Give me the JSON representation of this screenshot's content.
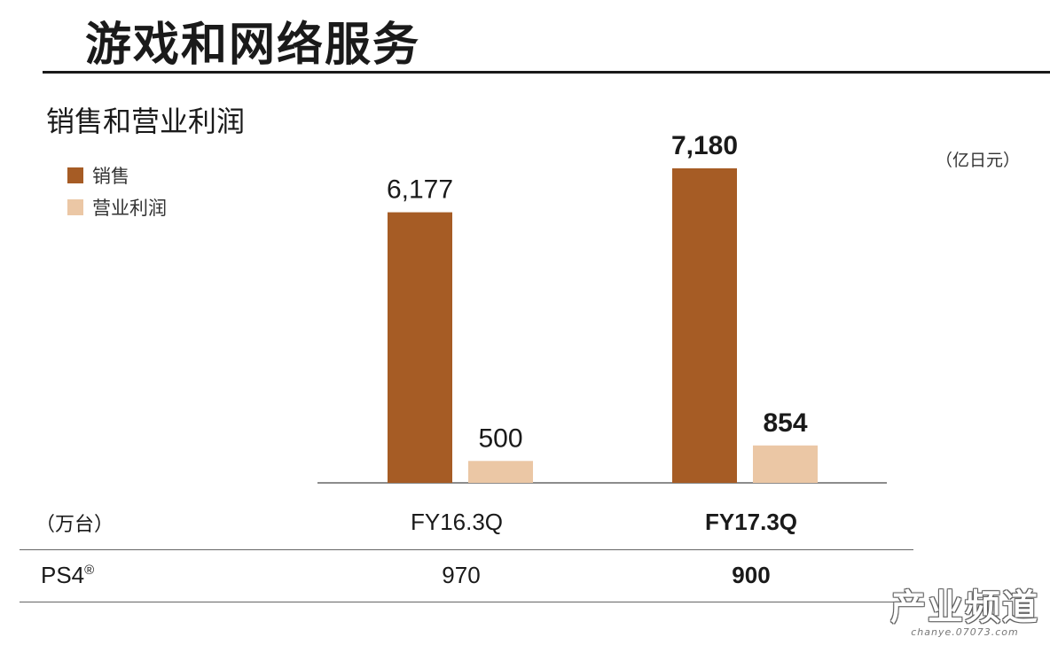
{
  "header": {
    "title": "游戏和网络服务"
  },
  "chart_data": {
    "type": "bar",
    "title": "销售和营业利润",
    "unit": "（亿日元）",
    "categories": [
      "FY16.3Q",
      "FY17.3Q"
    ],
    "series": [
      {
        "name": "销售",
        "color": "#A65C25",
        "values": [
          6177,
          7180
        ],
        "labels": [
          "6,177",
          "7,180"
        ]
      },
      {
        "name": "营业利润",
        "color": "#EBC7A5",
        "values": [
          500,
          854
        ],
        "labels": [
          "500",
          "854"
        ]
      }
    ],
    "highlight_category": "FY17.3Q",
    "ylim": [
      0,
      7180
    ],
    "legend_position": "top-left",
    "grid": false
  },
  "table": {
    "unit_label": "（万台）",
    "columns": [
      "FY16.3Q",
      "FY17.3Q"
    ],
    "rows": [
      {
        "label": "PS4",
        "mark": "®",
        "values": [
          "970",
          "900"
        ]
      }
    ]
  },
  "watermark": {
    "main": "产业频道",
    "sub": "chanye.07073.com"
  }
}
